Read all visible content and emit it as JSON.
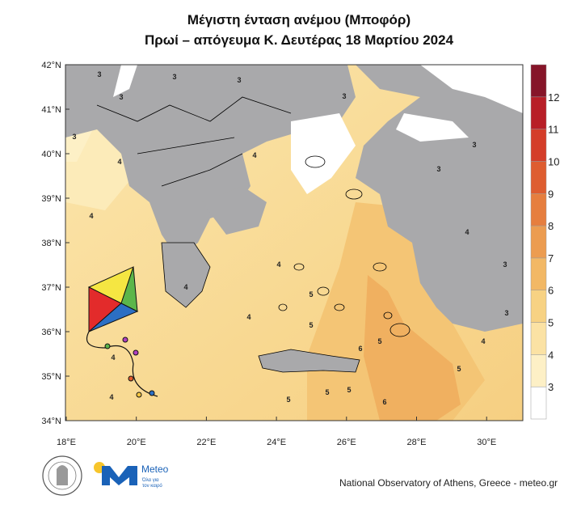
{
  "title": "Μέγιστη ένταση ανέμου (Μποφόρ)",
  "subtitle": "Πρωί – απόγευμα Κ. Δευτέρας 18 Μαρτίου 2024",
  "map": {
    "lat_labels": [
      "42°N",
      "41°N",
      "40°N",
      "39°N",
      "38°N",
      "37°N",
      "36°N",
      "35°N",
      "34°N"
    ],
    "lon_labels": [
      "18°E",
      "20°E",
      "22°E",
      "24°E",
      "26°E",
      "28°E",
      "30°E"
    ],
    "contour_labels": [
      3,
      3,
      3,
      3,
      3,
      4,
      4,
      4,
      4,
      5,
      5,
      6,
      6,
      5,
      4,
      3,
      5,
      5,
      4,
      4,
      4,
      3,
      3,
      4,
      3,
      5,
      5,
      4,
      3
    ]
  },
  "colorbar": {
    "levels": [
      3,
      4,
      5,
      6,
      7,
      8,
      9,
      10,
      11,
      12
    ],
    "colors": [
      "#ffffff",
      "#fdf0c6",
      "#fbe2a4",
      "#f7d283",
      "#f2b865",
      "#ec9c50",
      "#e67e3e",
      "#de5d30",
      "#d43d29",
      "#b81e27",
      "#861529"
    ]
  },
  "footer": {
    "brand": "Meteo",
    "tagline_1": "Όλα για",
    "tagline_2": "τον καιρό",
    "credit": "National Observatory of Athens, Greece - meteo.gr"
  }
}
